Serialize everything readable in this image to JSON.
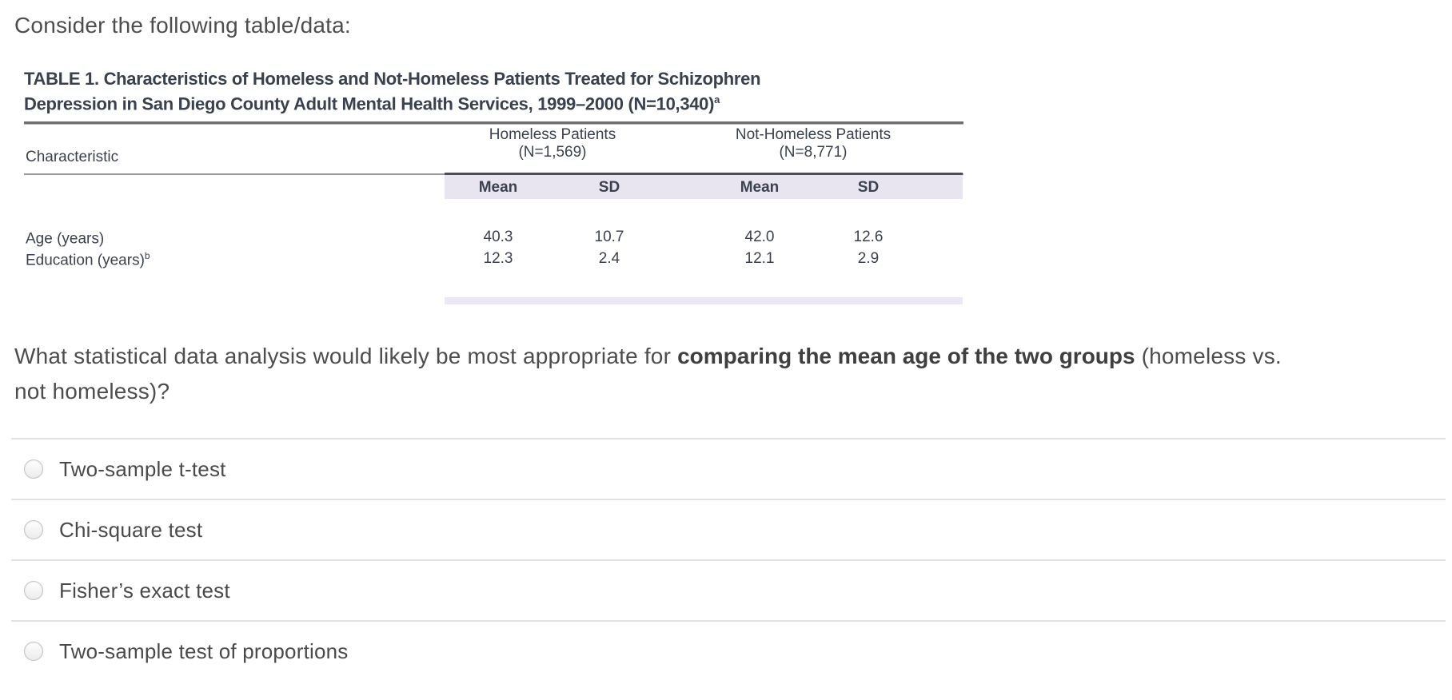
{
  "page": {
    "prompt": "Consider the following table/data:"
  },
  "scan": {
    "title_line1": "TABLE 1. Characteristics of Homeless and Not-Homeless Patients Treated for Schizophren",
    "title_line2": "Depression in San Diego County Adult Mental Health Services, 1999–2000 (N=10,340)",
    "title_line2_sup": "a",
    "col_characteristic": "Characteristic",
    "group1_name": "Homeless Patients",
    "group1_n": "(N=1,569)",
    "group2_name": "Not-Homeless Patients",
    "group2_n": "(N=8,771)",
    "subheaders": [
      "Mean",
      "SD",
      "Mean",
      "SD"
    ],
    "rows": [
      {
        "label": "Age (years)",
        "sup": "",
        "values": [
          "40.3",
          "10.7",
          "42.0",
          "12.6"
        ]
      },
      {
        "label": "Education (years)",
        "sup": "b",
        "values": [
          "12.3",
          "2.4",
          "12.1",
          "2.9"
        ]
      }
    ]
  },
  "question": {
    "pre": "What statistical data analysis would likely be most appropriate for ",
    "bold": "comparing the mean age of the two groups",
    "post1": " (homeless vs.",
    "post2": "not homeless)?"
  },
  "options": [
    {
      "label": "Two-sample t-test"
    },
    {
      "label": "Chi-square test"
    },
    {
      "label": "Fisher’s exact test"
    },
    {
      "label": "Two-sample test of proportions"
    }
  ],
  "colors": {
    "band_lavender": "#e8e5f1",
    "divider": "#e2e2e2",
    "body_text": "#4a4a4a",
    "scan_text": "#3b414f"
  }
}
